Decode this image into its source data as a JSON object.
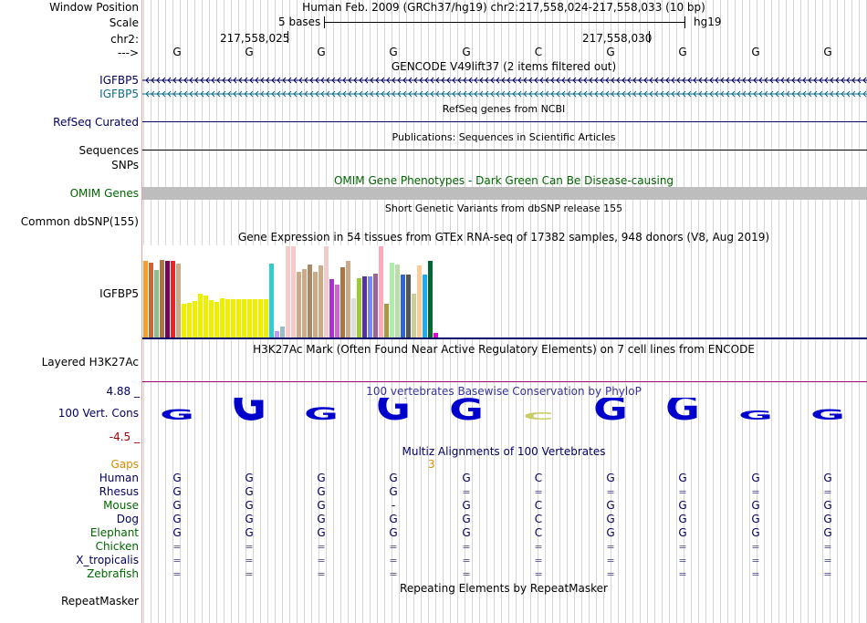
{
  "header": {
    "window_position_label": "Window Position",
    "window_position_text": "Human Feb. 2009 (GRCh37/hg19)   chr2:217,558,024-217,558,033 (10 bp)",
    "scale_label": "Scale",
    "scale_text": "5 bases",
    "assembly": "hg19",
    "chrom_label": "chr2:",
    "coord_left": "217,558,025",
    "coord_right": "217,558,030",
    "strand_label": "--->"
  },
  "bases": [
    "G",
    "G",
    "G",
    "G",
    "G",
    "C",
    "G",
    "G",
    "G",
    "G"
  ],
  "gencode": {
    "title": "GENCODE V49lift37 (2 items filtered out)",
    "track1_label": "IGFBP5",
    "track2_label": "IGFBP5"
  },
  "refseq": {
    "title": "RefSeq genes from NCBI",
    "label": "RefSeq Curated"
  },
  "publications": {
    "title": "Publications: Sequences in Scientific Articles",
    "label": "Sequences"
  },
  "snps": {
    "label": "SNPs"
  },
  "omim": {
    "title": "OMIM Gene Phenotypes - Dark Green Can Be Disease-causing",
    "label": "OMIM Genes"
  },
  "dbsnp": {
    "title": "Short Genetic Variants from dbSNP release 155",
    "label": "Common dbSNP(155)"
  },
  "gtex": {
    "title": "Gene Expression in 54 tissues from GTEx RNA-seq of 17382 samples, 948 donors (V8, Aug 2019)",
    "label": "IGFBP5",
    "max_value": 100,
    "bars": [
      {
        "v": 83,
        "c": "#FF9933"
      },
      {
        "v": 81,
        "c": "#CC6633"
      },
      {
        "v": 73,
        "c": "#8FBC8F"
      },
      {
        "v": 84,
        "c": "#AA7744"
      },
      {
        "v": 83,
        "c": "#770055"
      },
      {
        "v": 83,
        "c": "#EE2222"
      },
      {
        "v": 80,
        "c": "#CCAA88"
      },
      {
        "v": 37,
        "c": "#EEEE00"
      },
      {
        "v": 38,
        "c": "#EEEE00"
      },
      {
        "v": 40,
        "c": "#EEEE00"
      },
      {
        "v": 48,
        "c": "#EEEE00"
      },
      {
        "v": 46,
        "c": "#EEEE00"
      },
      {
        "v": 41,
        "c": "#EEEE00"
      },
      {
        "v": 39,
        "c": "#EEEE00"
      },
      {
        "v": 43,
        "c": "#EEEE00"
      },
      {
        "v": 42,
        "c": "#EEEE00"
      },
      {
        "v": 42,
        "c": "#EEEE00"
      },
      {
        "v": 42,
        "c": "#EEEE00"
      },
      {
        "v": 42,
        "c": "#EEEE00"
      },
      {
        "v": 42,
        "c": "#EEEE00"
      },
      {
        "v": 42,
        "c": "#EEEE00"
      },
      {
        "v": 42,
        "c": "#EEEE00"
      },
      {
        "v": 42,
        "c": "#EEEE00"
      },
      {
        "v": 80,
        "c": "#33CCCC"
      },
      {
        "v": 7,
        "c": "#BB99FF"
      },
      {
        "v": 12,
        "c": "#99BBCC"
      },
      {
        "v": 99,
        "c": "#F7C9C9"
      },
      {
        "v": 99,
        "c": "#F7C9C9"
      },
      {
        "v": 71,
        "c": "#CCAA88"
      },
      {
        "v": 74,
        "c": "#CCAA88"
      },
      {
        "v": 79,
        "c": "#AA8866"
      },
      {
        "v": 71,
        "c": "#CCAA88"
      },
      {
        "v": 78,
        "c": "#CCAA88"
      },
      {
        "v": 99,
        "c": "#EECCCC"
      },
      {
        "v": 63,
        "c": "#AA33CC"
      },
      {
        "v": 57,
        "c": "#CC66CC"
      },
      {
        "v": 76,
        "c": "#AA7744"
      },
      {
        "v": 83,
        "c": "#CCAA88"
      },
      {
        "v": 43,
        "c": "#DDDDDD"
      },
      {
        "v": 64,
        "c": "#99CC33"
      },
      {
        "v": 66,
        "c": "#553399"
      },
      {
        "v": 66,
        "c": "#7788FF"
      },
      {
        "v": 69,
        "c": "#996699"
      },
      {
        "v": 99,
        "c": "#FFAABB"
      },
      {
        "v": 37,
        "c": "#AA9944"
      },
      {
        "v": 81,
        "c": "#AAEEAA"
      },
      {
        "v": 79,
        "c": "#BBDDAA"
      },
      {
        "v": 68,
        "c": "#3366CC"
      },
      {
        "v": 68,
        "c": "#555555"
      },
      {
        "v": 48,
        "c": "#CCCC99"
      },
      {
        "v": 78,
        "c": "#FFCC99"
      },
      {
        "v": 68,
        "c": "#22AAEE"
      },
      {
        "v": 83,
        "c": "#006633"
      },
      {
        "v": 5,
        "c": "#DD00DD"
      }
    ]
  },
  "h3k27ac": {
    "title": "H3K27Ac Mark (Often Found Near Active Regulatory Elements) on 7 cell lines from ENCODE",
    "label": "Layered H3K27Ac"
  },
  "phylop": {
    "title": "100 vertebrates Basewise Conservation by PhyloP",
    "label": "100 Vert. Cons",
    "ymax": "4.88 _",
    "ymin": "-4.5 _",
    "scores": [
      0.3,
      1.0,
      0.35,
      0.8,
      0.6,
      -0.2,
      0.65,
      0.7,
      0.25,
      0.3
    ],
    "color": "#0000cc",
    "neg_color": "#cccc66"
  },
  "multiz": {
    "title": "Multiz Alignments of 100 Vertebrates",
    "gaps_label": "Gaps",
    "gaps_value": "3",
    "species": [
      {
        "name": "Human",
        "color": "#000066",
        "cells": [
          "G",
          "G",
          "G",
          "G",
          "G",
          "C",
          "G",
          "G",
          "G",
          "G"
        ]
      },
      {
        "name": "Rhesus",
        "color": "#000066",
        "cells": [
          "G",
          "G",
          "G",
          "G",
          "=",
          "=",
          "=",
          "=",
          "=",
          "="
        ]
      },
      {
        "name": "Mouse",
        "color": "#006600",
        "cells": [
          "G",
          "G",
          "G",
          "-",
          "G",
          "C",
          "G",
          "G",
          "G",
          "G"
        ]
      },
      {
        "name": "Dog",
        "color": "#000066",
        "cells": [
          "G",
          "G",
          "G",
          "G",
          "G",
          "C",
          "G",
          "G",
          "G",
          "G"
        ]
      },
      {
        "name": "Elephant",
        "color": "#006600",
        "cells": [
          "G",
          "G",
          "G",
          "G",
          "G",
          "C",
          "G",
          "G",
          "G",
          "G"
        ]
      },
      {
        "name": "Chicken",
        "color": "#006600",
        "cells": [
          "=",
          "=",
          "=",
          "=",
          "=",
          "=",
          "=",
          "=",
          "=",
          "="
        ]
      },
      {
        "name": "X_tropicalis",
        "color": "#000066",
        "cells": [
          "=",
          "=",
          "=",
          "=",
          "=",
          "=",
          "=",
          "=",
          "=",
          "="
        ]
      },
      {
        "name": "Zebrafish",
        "color": "#006600",
        "cells": [
          "=",
          "=",
          "=",
          "=",
          "=",
          "=",
          "=",
          "=",
          "=",
          "="
        ]
      }
    ]
  },
  "repeatmasker": {
    "title": "Repeating Elements by RepeatMasker",
    "label": "RepeatMasker"
  },
  "colors": {
    "navy": "#000066",
    "gencode_cyan": "#0c6d8a",
    "omim_green": "#006600",
    "omim_bar": "#bdbdbd",
    "gaps_orange": "#d98c00",
    "h3k_line": "#990066"
  }
}
